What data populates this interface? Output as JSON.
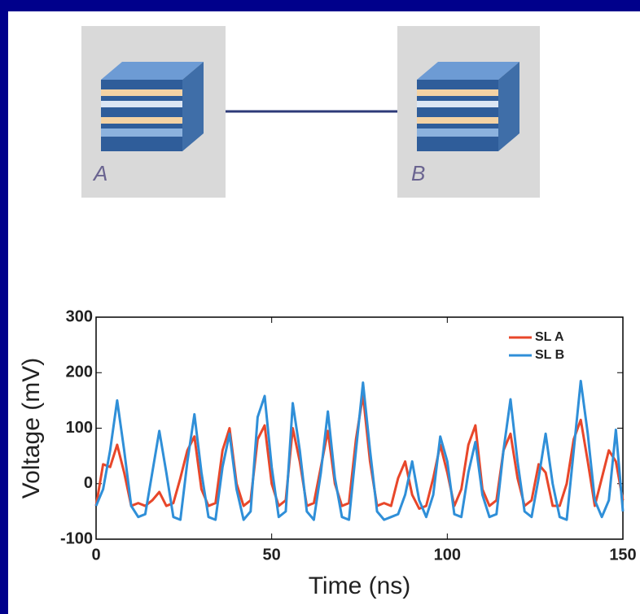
{
  "diagram": {
    "nodes": [
      {
        "label": "A"
      },
      {
        "label": "B"
      }
    ]
  },
  "chart_data": {
    "type": "line",
    "x_label": "Time (ns)",
    "y_label": "Voltage (mV)",
    "xlim": [
      0,
      150
    ],
    "xticks": [
      0,
      50,
      100,
      150
    ],
    "ylim": [
      -100,
      300
    ],
    "yticks": [
      -100,
      0,
      100,
      200,
      300
    ],
    "legend": "top-right",
    "x": [
      0,
      2,
      4,
      6,
      8,
      10,
      12,
      14,
      16,
      18,
      20,
      22,
      24,
      26,
      28,
      30,
      32,
      34,
      36,
      38,
      40,
      42,
      44,
      46,
      48,
      50,
      52,
      54,
      56,
      58,
      60,
      62,
      64,
      66,
      68,
      70,
      72,
      74,
      76,
      78,
      80,
      82,
      84,
      86,
      88,
      90,
      92,
      94,
      96,
      98,
      100,
      102,
      104,
      106,
      108,
      110,
      112,
      114,
      116,
      118,
      120,
      122,
      124,
      126,
      128,
      130,
      132,
      134,
      136,
      138,
      140,
      142,
      144,
      146,
      148,
      150
    ],
    "series": [
      {
        "name": "SL A",
        "color": "#e8472a",
        "values": [
          -40,
          35,
          30,
          70,
          20,
          -40,
          -35,
          -40,
          -30,
          -15,
          -40,
          -35,
          10,
          60,
          85,
          -10,
          -40,
          -35,
          60,
          100,
          0,
          -40,
          -30,
          80,
          105,
          0,
          -40,
          -30,
          100,
          40,
          -40,
          -35,
          30,
          95,
          0,
          -40,
          -35,
          80,
          160,
          40,
          -40,
          -35,
          -40,
          10,
          40,
          -20,
          -45,
          -40,
          10,
          70,
          20,
          -40,
          -10,
          70,
          105,
          -10,
          -40,
          -30,
          60,
          90,
          10,
          -40,
          -30,
          35,
          20,
          -40,
          -40,
          0,
          80,
          115,
          40,
          -40,
          10,
          60,
          40,
          -30
        ]
      },
      {
        "name": "SL B",
        "color": "#2f8fd8",
        "values": [
          -40,
          -10,
          60,
          150,
          60,
          -40,
          -60,
          -55,
          20,
          95,
          20,
          -60,
          -65,
          40,
          125,
          20,
          -60,
          -65,
          30,
          90,
          -10,
          -65,
          -50,
          120,
          158,
          30,
          -60,
          -50,
          145,
          60,
          -50,
          -65,
          20,
          130,
          10,
          -60,
          -65,
          60,
          182,
          60,
          -50,
          -65,
          -60,
          -55,
          -20,
          40,
          -30,
          -60,
          -20,
          85,
          40,
          -55,
          -60,
          20,
          75,
          -20,
          -60,
          -55,
          60,
          152,
          40,
          -50,
          -60,
          10,
          90,
          0,
          -60,
          -65,
          60,
          185,
          90,
          -30,
          -60,
          -30,
          97,
          -50
        ]
      }
    ]
  }
}
